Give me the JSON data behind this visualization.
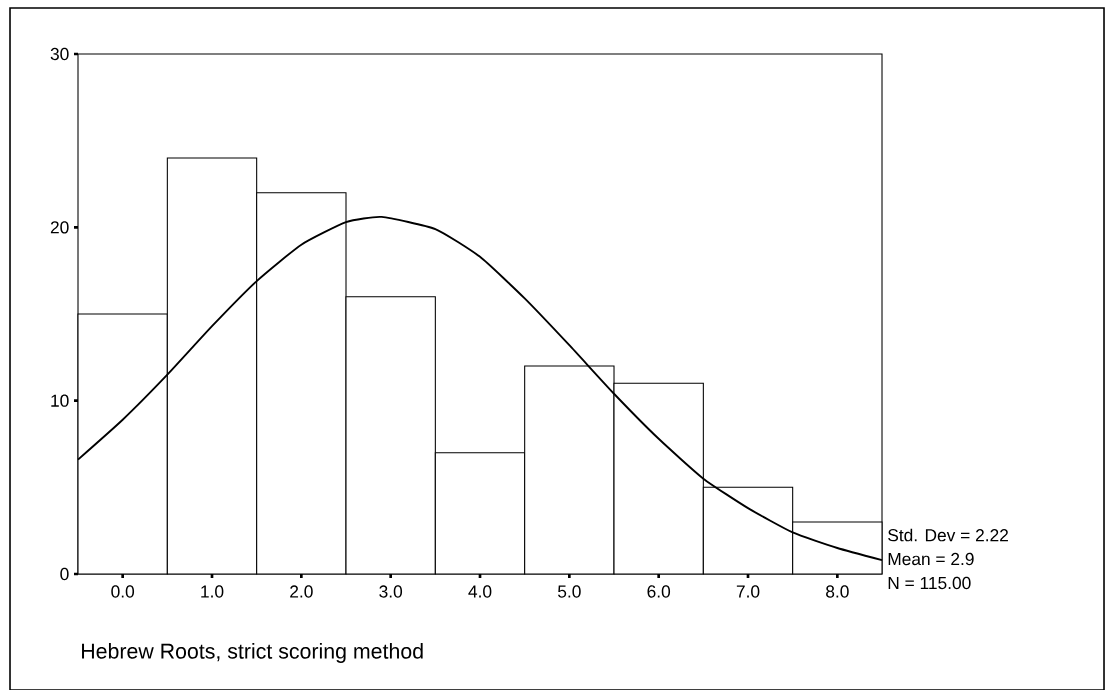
{
  "chart_data": {
    "type": "histogram",
    "xlabel": "Hebrew Roots, strict scoring method",
    "bins": [
      -0.5,
      0.5,
      1.5,
      2.5,
      3.5,
      4.5,
      5.5,
      6.5,
      7.5,
      8.5
    ],
    "values": [
      15,
      24,
      22,
      16,
      7,
      12,
      11,
      5,
      3
    ],
    "color": "#ffffff",
    "series": [
      {
        "type": "line",
        "color": "#000000",
        "x": [
          -0.5,
          0,
          0.5,
          1,
          1.5,
          2,
          2.5,
          2.9,
          3.5,
          4,
          4.5,
          5,
          5.5,
          6,
          6.5,
          7,
          7.5,
          8,
          8.5
        ],
        "values": [
          6.6,
          8.9,
          11.5,
          14.3,
          16.9,
          19.0,
          20.3,
          20.6,
          19.9,
          18.3,
          15.9,
          13.2,
          10.4,
          7.8,
          5.5,
          3.8,
          2.4,
          1.5,
          0.8
        ]
      }
    ],
    "xlim": [
      -0.5,
      8.5
    ],
    "ylim": [
      0,
      30
    ],
    "xticks": [
      {
        "value": 0,
        "label": "0.0"
      },
      {
        "value": 1,
        "label": "1.0"
      },
      {
        "value": 2,
        "label": "2.0"
      },
      {
        "value": 3,
        "label": "3.0"
      },
      {
        "value": 4,
        "label": "4.0"
      },
      {
        "value": 5,
        "label": "5.0"
      },
      {
        "value": 6,
        "label": "6.0"
      },
      {
        "value": 7,
        "label": "7.0"
      },
      {
        "value": 8,
        "label": "8.0"
      }
    ],
    "yticks": [
      0,
      10,
      20,
      30
    ],
    "annotations": [
      "Std. Dev = 2.22",
      "Mean = 2.9",
      "N = 115.00"
    ],
    "grid": false
  }
}
